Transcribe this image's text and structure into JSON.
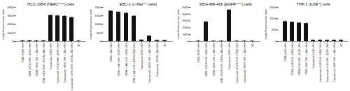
{
  "chart_data": [
    {
      "type": "bar",
      "title": "HCC-1954 (HER2⁺⁺⁺) cells",
      "ylabel": "mean fluorescence units",
      "categories": [
        "CD98 x HER2 VHH",
        "CD98 x HER2 VHH + EGFR VHH",
        "CD98 x HER2 VHH + c-Met VHH",
        "CD98 x HER2 VHH + EGFR+c-Met VHH",
        "Trastuzumab x HER2 VHH",
        "Trastuzumab x HER2 VHH + EGFR VHH",
        "Trastuzumab x HER2 VHH + c-Met VHH",
        "Trastuzumab x HER2 VHH + EGFR+c-Met VHH",
        "NC"
      ],
      "values": [
        55,
        65,
        60,
        65,
        3050,
        3000,
        2950,
        2800,
        45
      ],
      "errors": [
        15,
        15,
        15,
        15,
        90,
        90,
        90,
        90,
        10
      ],
      "color": "#111111",
      "ylim": [
        0,
        4000
      ],
      "yticks": [
        0,
        1000,
        2000,
        3000,
        4000
      ]
    },
    {
      "type": "bar",
      "title": "EBC-1 (c-Met⁺⁺ cells)",
      "ylabel": "mean fluorescence units",
      "categories": [
        "CD98 x c-Met VHH",
        "CD98 x c-Met VHH + EGFR VHH",
        "CD98 x c-Met VHH + HER2 VHH",
        "CD98 x c-Met VHH + EGFR+HER2 VHH",
        "Trastuzumab x EGFR VHH",
        "Trastuzumab x EGFR VHH + c-Met VHH",
        "Trastuzumab x EGFR+c-Met VHH",
        "NC"
      ],
      "values": [
        1780,
        1720,
        1650,
        1480,
        80,
        310,
        55,
        50
      ],
      "errors": [
        55,
        55,
        50,
        45,
        20,
        35,
        10,
        8
      ],
      "color": "#111111",
      "ylim": [
        0,
        2000
      ],
      "yticks": [
        0,
        500,
        1000,
        1500,
        2000
      ]
    },
    {
      "type": "bar",
      "title": "MDA-MB-468 (EGFR⁺⁺⁺) cells",
      "ylabel": "mean fluorescence units",
      "categories": [
        "CD98 x EGFR VHH",
        "CD98 x EGFR VHH + HER2 VHH",
        "CD98 x EGFR VHH + c-Met VHH",
        "CD98 x EGFR VHH + HER2+c-Met VHH",
        "Trastuzumab x EGFR VHH",
        "Trastuzumab x EGFR VHH + HER2 VHH",
        "Trastuzumab x EGFR VHH + c-Met VHH",
        "NC"
      ],
      "values": [
        50,
        2850,
        50,
        50,
        4600,
        50,
        50,
        50
      ],
      "errors": [
        8,
        90,
        8,
        8,
        110,
        8,
        8,
        8
      ],
      "color": "#111111",
      "ylim": [
        0,
        5000
      ],
      "yticks": [
        0,
        1000,
        2000,
        3000,
        4000,
        5000
      ]
    },
    {
      "type": "bar",
      "title": "THP-1 (IL6R⁺) cells",
      "ylabel": "mean fluorescence units",
      "categories": [
        "CD98 x IL6R VHH",
        "CD98 x IL6R VHH + HER2 VHH",
        "CD98 x IL6R VHH + EGFR VHH",
        "CD98 x IL6R VHH + c-Met VHH",
        "Trastuzumab x IL6R VHH",
        "Trastuzumab x IL6R VHH + HER2 VHH",
        "Trastuzumab x IL6R VHH + EGFR VHH",
        "Trastuzumab x IL6R VHH + c-Met VHH",
        "NC"
      ],
      "values": [
        870,
        840,
        810,
        790,
        50,
        50,
        50,
        50,
        50
      ],
      "errors": [
        35,
        35,
        35,
        35,
        8,
        8,
        8,
        8,
        8
      ],
      "color": "#111111",
      "ylim": [
        0,
        1500
      ],
      "yticks": [
        0,
        500,
        1000,
        1500
      ]
    }
  ]
}
